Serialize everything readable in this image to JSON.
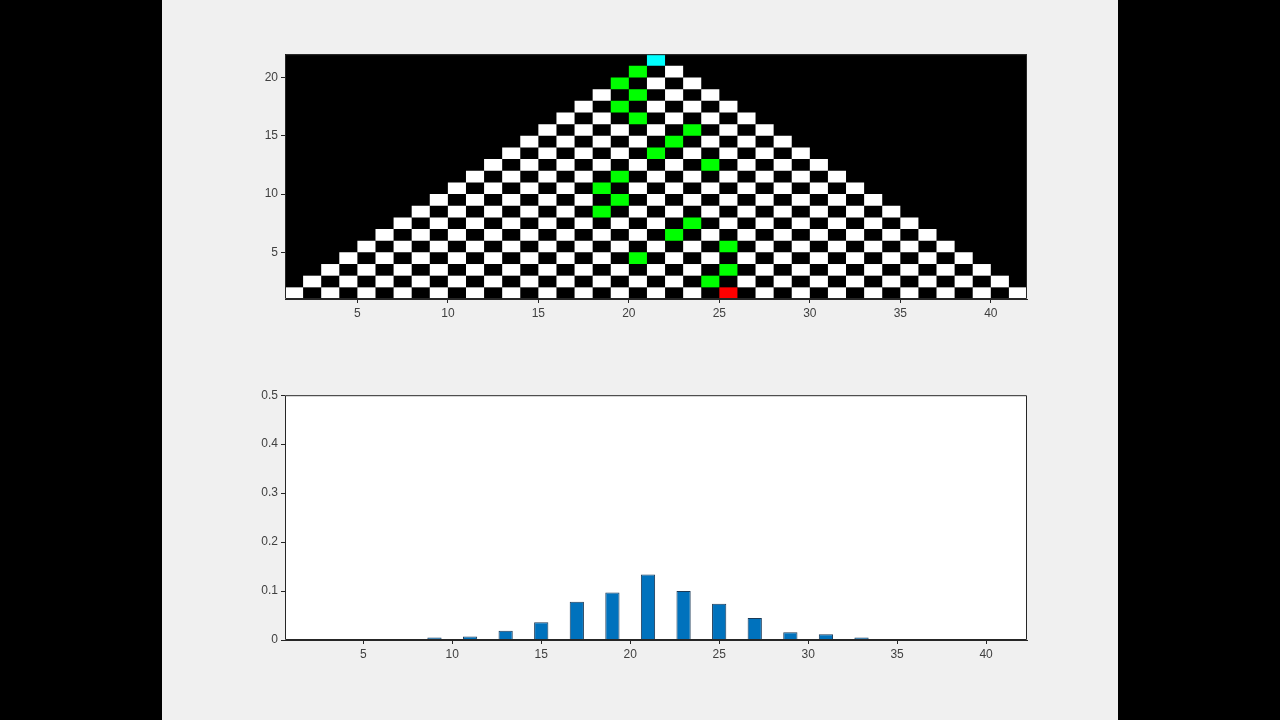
{
  "chart_data": [
    {
      "type": "scatter",
      "marker": "square",
      "xlim": [
        1,
        42
      ],
      "ylim": [
        1,
        22
      ],
      "xticks": [
        5,
        10,
        15,
        20,
        25,
        30,
        35,
        40
      ],
      "yticks": [
        5,
        10,
        15,
        20
      ],
      "series": [
        {
          "color": "#ffffff",
          "x": [
            1.5,
            3.5,
            5.5,
            7.5,
            9.5,
            11.5,
            13.5,
            15.5,
            17.5,
            19.5,
            21.5,
            23.5,
            27.5,
            29.5,
            31.5,
            33.5,
            35.5,
            37.5,
            39.5,
            41.5
          ],
          "values": [
            1.5,
            1.5,
            1.5,
            1.5,
            1.5,
            1.5,
            1.5,
            1.5,
            1.5,
            1.5,
            1.5,
            1.5,
            1.5,
            1.5,
            1.5,
            1.5,
            1.5,
            1.5,
            1.5,
            1.5
          ]
        },
        {
          "color": "#ffffff",
          "x": [
            2.5,
            4.5,
            6.5,
            8.5,
            10.5,
            12.5,
            14.5,
            16.5,
            18.5,
            20.5,
            22.5,
            26.5,
            28.5,
            30.5,
            32.5,
            34.5,
            36.5,
            38.5,
            40.5
          ],
          "values": [
            2.5,
            2.5,
            2.5,
            2.5,
            2.5,
            2.5,
            2.5,
            2.5,
            2.5,
            2.5,
            2.5,
            2.5,
            2.5,
            2.5,
            2.5,
            2.5,
            2.5,
            2.5,
            2.5
          ]
        },
        {
          "color": "#ffffff",
          "x": [
            3.5,
            5.5,
            7.5,
            9.5,
            11.5,
            13.5,
            15.5,
            17.5,
            19.5,
            21.5,
            23.5,
            27.5,
            29.5,
            31.5,
            33.5,
            35.5,
            37.5,
            39.5
          ],
          "values": [
            3.5,
            3.5,
            3.5,
            3.5,
            3.5,
            3.5,
            3.5,
            3.5,
            3.5,
            3.5,
            3.5,
            3.5,
            3.5,
            3.5,
            3.5,
            3.5,
            3.5,
            3.5
          ]
        },
        {
          "color": "#ffffff",
          "x": [
            4.5,
            6.5,
            8.5,
            10.5,
            12.5,
            14.5,
            16.5,
            18.5,
            22.5,
            24.5,
            26.5,
            28.5,
            30.5,
            32.5,
            34.5,
            36.5,
            38.5
          ],
          "values": [
            4.5,
            4.5,
            4.5,
            4.5,
            4.5,
            4.5,
            4.5,
            4.5,
            4.5,
            4.5,
            4.5,
            4.5,
            4.5,
            4.5,
            4.5,
            4.5,
            4.5
          ]
        },
        {
          "color": "#ffffff",
          "x": [
            5.5,
            7.5,
            9.5,
            11.5,
            13.5,
            15.5,
            17.5,
            19.5,
            21.5,
            23.5,
            27.5,
            29.5,
            31.5,
            33.5,
            35.5,
            37.5
          ],
          "values": [
            5.5,
            5.5,
            5.5,
            5.5,
            5.5,
            5.5,
            5.5,
            5.5,
            5.5,
            5.5,
            5.5,
            5.5,
            5.5,
            5.5,
            5.5,
            5.5
          ]
        },
        {
          "color": "#ffffff",
          "x": [
            6.5,
            8.5,
            10.5,
            12.5,
            14.5,
            16.5,
            18.5,
            20.5,
            24.5,
            26.5,
            28.5,
            30.5,
            32.5,
            34.5,
            36.5
          ],
          "values": [
            6.5,
            6.5,
            6.5,
            6.5,
            6.5,
            6.5,
            6.5,
            6.5,
            6.5,
            6.5,
            6.5,
            6.5,
            6.5,
            6.5,
            6.5
          ]
        },
        {
          "color": "#ffffff",
          "x": [
            7.5,
            9.5,
            11.5,
            13.5,
            15.5,
            17.5,
            19.5,
            21.5,
            25.5,
            27.5,
            29.5,
            31.5,
            33.5,
            35.5
          ],
          "values": [
            7.5,
            7.5,
            7.5,
            7.5,
            7.5,
            7.5,
            7.5,
            7.5,
            7.5,
            7.5,
            7.5,
            7.5,
            7.5,
            7.5
          ]
        },
        {
          "color": "#ffffff",
          "x": [
            8.5,
            10.5,
            12.5,
            14.5,
            16.5,
            20.5,
            22.5,
            24.5,
            26.5,
            28.5,
            30.5,
            32.5,
            34.5
          ],
          "values": [
            8.5,
            8.5,
            8.5,
            8.5,
            8.5,
            8.5,
            8.5,
            8.5,
            8.5,
            8.5,
            8.5,
            8.5,
            8.5
          ]
        },
        {
          "color": "#ffffff",
          "x": [
            9.5,
            11.5,
            13.5,
            15.5,
            17.5,
            21.5,
            23.5,
            25.5,
            27.5,
            29.5,
            31.5,
            33.5
          ],
          "values": [
            9.5,
            9.5,
            9.5,
            9.5,
            9.5,
            9.5,
            9.5,
            9.5,
            9.5,
            9.5,
            9.5,
            9.5
          ]
        },
        {
          "color": "#ffffff",
          "x": [
            10.5,
            12.5,
            14.5,
            16.5,
            20.5,
            22.5,
            24.5,
            26.5,
            28.5,
            30.5,
            32.5
          ],
          "values": [
            10.5,
            10.5,
            10.5,
            10.5,
            10.5,
            10.5,
            10.5,
            10.5,
            10.5,
            10.5,
            10.5
          ]
        },
        {
          "color": "#ffffff",
          "x": [
            11.5,
            13.5,
            15.5,
            17.5,
            21.5,
            23.5,
            25.5,
            27.5,
            29.5,
            31.5
          ],
          "values": [
            11.5,
            11.5,
            11.5,
            11.5,
            11.5,
            11.5,
            11.5,
            11.5,
            11.5,
            11.5
          ]
        },
        {
          "color": "#ffffff",
          "x": [
            12.5,
            14.5,
            16.5,
            18.5,
            20.5,
            22.5,
            26.5,
            28.5,
            30.5
          ],
          "values": [
            12.5,
            12.5,
            12.5,
            12.5,
            12.5,
            12.5,
            12.5,
            12.5,
            12.5
          ]
        },
        {
          "color": "#ffffff",
          "x": [
            13.5,
            15.5,
            17.5,
            19.5,
            23.5,
            25.5,
            27.5,
            29.5
          ],
          "values": [
            13.5,
            13.5,
            13.5,
            13.5,
            13.5,
            13.5,
            13.5,
            13.5
          ]
        },
        {
          "color": "#ffffff",
          "x": [
            14.5,
            16.5,
            18.5,
            20.5,
            24.5,
            26.5,
            28.5
          ],
          "values": [
            14.5,
            14.5,
            14.5,
            14.5,
            14.5,
            14.5,
            14.5
          ]
        },
        {
          "color": "#ffffff",
          "x": [
            15.5,
            17.5,
            19.5,
            21.5,
            25.5,
            27.5
          ],
          "values": [
            15.5,
            15.5,
            15.5,
            15.5,
            15.5,
            15.5
          ]
        },
        {
          "color": "#ffffff",
          "x": [
            16.5,
            18.5,
            22.5,
            24.5,
            26.5
          ],
          "values": [
            16.5,
            16.5,
            16.5,
            16.5,
            16.5
          ]
        },
        {
          "color": "#ffffff",
          "x": [
            17.5,
            21.5,
            23.5,
            25.5
          ],
          "values": [
            17.5,
            17.5,
            17.5,
            17.5
          ]
        },
        {
          "color": "#ffffff",
          "x": [
            18.5,
            22.5,
            24.5
          ],
          "values": [
            18.5,
            18.5,
            18.5
          ]
        },
        {
          "color": "#ffffff",
          "x": [
            21.5,
            23.5
          ],
          "values": [
            19.5,
            19.5
          ]
        },
        {
          "color": "#ffffff",
          "x": [
            22.5
          ],
          "values": [
            20.5
          ]
        },
        {
          "color": "#00ff00",
          "x": [
            20.5,
            19.5,
            20.5,
            19.5,
            20.5,
            23.5,
            22.5,
            21.5,
            24.5,
            19.5,
            18.5,
            19.5,
            18.5,
            23.5,
            22.5,
            25.5,
            20.5,
            25.5,
            24.5
          ],
          "values": [
            20.5,
            19.5,
            18.5,
            17.5,
            16.5,
            15.5,
            14.5,
            13.5,
            12.5,
            11.5,
            10.5,
            9.5,
            8.5,
            7.5,
            6.5,
            5.5,
            4.5,
            3.5,
            2.5
          ]
        },
        {
          "color": "#00ffff",
          "x": [
            21.5
          ],
          "values": [
            21.5
          ]
        },
        {
          "color": "#ff0000",
          "x": [
            25.5
          ],
          "values": [
            1.5
          ]
        }
      ]
    },
    {
      "type": "bar",
      "x": [
        9,
        11,
        13,
        15,
        17,
        19,
        21,
        23,
        25,
        27,
        29,
        31,
        33
      ],
      "values": [
        0.005,
        0.007,
        0.019,
        0.036,
        0.078,
        0.097,
        0.134,
        0.1,
        0.074,
        0.045,
        0.016,
        0.012,
        0.005
      ],
      "color": "#0072bd",
      "xlim": [
        0.6,
        42.3
      ],
      "ylim": [
        0,
        0.5
      ],
      "xticks": [
        5,
        10,
        15,
        20,
        25,
        30,
        35,
        40
      ],
      "yticks": [
        0,
        0.1,
        0.2,
        0.3,
        0.4,
        0.5
      ]
    }
  ]
}
